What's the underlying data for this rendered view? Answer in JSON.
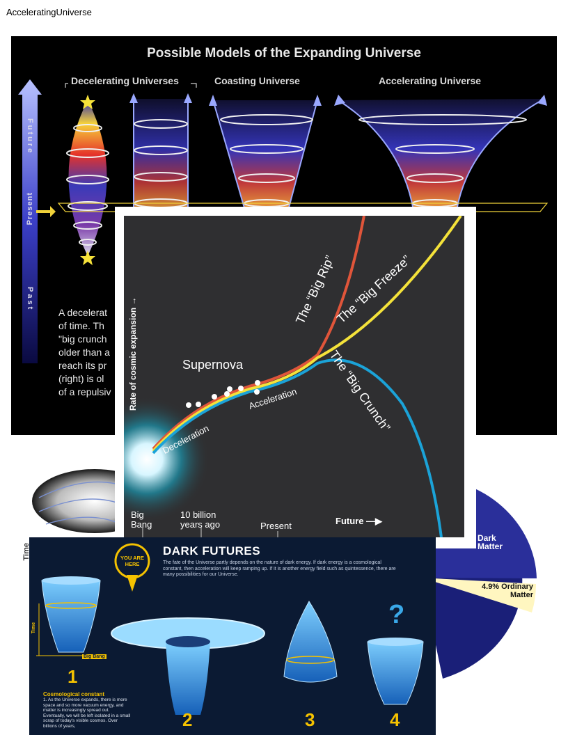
{
  "page": {
    "title": "AcceleratingUniverse"
  },
  "panel1": {
    "title": "Possible Models of the Expanding Universe",
    "headings": {
      "decelerating": "Decelerating Universes",
      "coasting": "Coasting Universe",
      "accelerating": "Accelerating Universe"
    },
    "timeline": {
      "future": "Future",
      "present": "Present",
      "past": "Past"
    },
    "description_lines": [
      "A decelerat",
      "of time. Th",
      "\"big crunch",
      "older than a",
      "reach its pr",
      "(right) is ol",
      "of a repulsiv"
    ]
  },
  "panel2": {
    "axis_label": "Time",
    "pie_labels": {
      "dark_matter": [
        "Dark",
        "Matter"
      ],
      "ordinary_matter": [
        "4.9% Ordinary",
        "Matter"
      ]
    },
    "colors": {
      "pie_dark": "#1a1f78",
      "pie_mid": "#2a2f9a",
      "pie_ordinary": "#fff6c0"
    }
  },
  "panel3": {
    "ylabel": "Rate of cosmic expansion →",
    "curves": {
      "big_rip": "The “Big Rip”",
      "big_freeze": "The “Big Freeze”",
      "big_crunch": "The “Big Crunch”"
    },
    "annotations": {
      "supernova": "Supernova",
      "deceleration": "Deceleration",
      "acceleration": "Acceleration"
    },
    "xlabels": {
      "big_bang": [
        "Big",
        "Bang"
      ],
      "ten_billion": [
        "10 billion",
        "years ago"
      ],
      "present": "Present",
      "future": "Future —▶"
    },
    "colors": {
      "rip": "#e0553a",
      "freeze": "#f4e23a",
      "crunch": "#1ba3d8",
      "background": "#2f2f31"
    }
  },
  "panel4": {
    "title": "DARK FUTURES",
    "intro": "The fate of the Universe partly depends on the nature of dark energy. If dark energy is a cosmological constant, then acceleration will keep ramping up. If it is another energy field such as quintessence, there are many possibilities for our Universe.",
    "badge": [
      "YOU ARE",
      "HERE"
    ],
    "axis_time": "Time",
    "big_bang_tag": "Big Bang",
    "numbers": [
      "1",
      "2",
      "3",
      "4"
    ],
    "question_mark": "?",
    "cosmo_title": "Cosmological constant",
    "cosmo_body": "1. As the Universe expands, there is more space and so more vacuum energy, and matter is increasingly spread out. Eventually, we will be left isolated in a small scrap of today's visible cosmos. Over billions of years,",
    "colors": {
      "accent": "#f5c200",
      "funnel": "#3aa8e8",
      "bg": "#0b1a33"
    }
  }
}
